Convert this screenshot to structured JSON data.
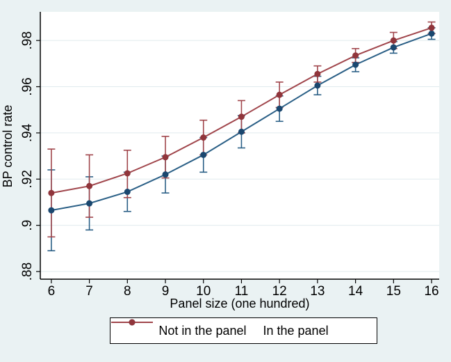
{
  "figure": {
    "background": "#eaf2f3",
    "plot_background": "#ffffff",
    "grid_color": "#e0ebee",
    "axis_color": "#000000",
    "tick_label_color": "#000000"
  },
  "chart_data": {
    "type": "line",
    "title": "",
    "xlabel": "Panel size (one hundred)",
    "ylabel": "BP control rate",
    "grid": "horizontal",
    "legend_position": "bottom",
    "x": [
      6,
      7,
      8,
      9,
      10,
      11,
      12,
      13,
      14,
      15,
      16
    ],
    "xlim": [
      5.71,
      16.2
    ],
    "ylim": [
      0.8767,
      0.9924
    ],
    "yticks": [
      0.88,
      0.9,
      0.92,
      0.94,
      0.96,
      0.98
    ],
    "ytick_labels": [
      ".88",
      ".9",
      ".92",
      ".94",
      ".96",
      ".98"
    ],
    "xtick_labels": [
      "6",
      "7",
      "8",
      "9",
      "10",
      "11",
      "12",
      "13",
      "14",
      "15",
      "16"
    ],
    "series": [
      {
        "name": "Not in the panel",
        "line_color": "#2a5f86",
        "marker_color": "#1a476f",
        "values": [
          0.9065,
          0.9095,
          0.9145,
          0.922,
          0.9305,
          0.9405,
          0.9505,
          0.9605,
          0.9695,
          0.977,
          0.983
        ],
        "ci_lower": [
          0.889,
          0.898,
          0.906,
          0.914,
          0.923,
          0.9335,
          0.945,
          0.9565,
          0.9665,
          0.9745,
          0.9805
        ],
        "ci_upper": [
          0.924,
          0.921,
          0.923,
          0.93,
          0.938,
          0.9475,
          0.956,
          0.9645,
          0.9725,
          0.9795,
          0.9855
        ]
      },
      {
        "name": "In the panel",
        "line_color": "#a0454b",
        "marker_color": "#90353b",
        "values": [
          0.914,
          0.917,
          0.9225,
          0.9295,
          0.938,
          0.947,
          0.9565,
          0.9655,
          0.9735,
          0.98,
          0.9855
        ],
        "ci_lower": [
          0.895,
          0.9035,
          0.912,
          0.9205,
          0.9305,
          0.94,
          0.951,
          0.962,
          0.9705,
          0.9765,
          0.983
        ],
        "ci_upper": [
          0.933,
          0.9305,
          0.9325,
          0.9385,
          0.9455,
          0.954,
          0.962,
          0.969,
          0.9765,
          0.9835,
          0.988
        ]
      }
    ]
  }
}
